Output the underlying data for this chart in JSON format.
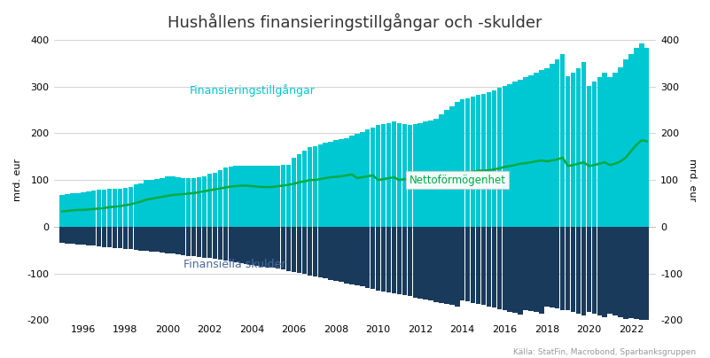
{
  "title": "Hushållens finansieringstillgångar och -skulder",
  "ylabel_left": "mrd. eur",
  "ylabel_right": "mrd. eur",
  "source": "Källa: StatFin, Macrobond, Sparbanksgruppen",
  "ylim": [
    -200,
    400
  ],
  "yticks": [
    -200,
    -100,
    0,
    100,
    200,
    300,
    400
  ],
  "background_color": "#ffffff",
  "bar_color_assets": "#00c8d2",
  "bar_color_liabilities": "#1a3a5c",
  "line_color": "#00aa44",
  "label_assets": "Finansieringstillgångar",
  "label_liabilities": "Finansiella skulder",
  "label_net": "Nettoförmögenhet",
  "start_year": 1995,
  "n_quarters": 112,
  "assets_quarterly": [
    68,
    70,
    71,
    72,
    73,
    75,
    77,
    79,
    80,
    81,
    82,
    82,
    84,
    86,
    90,
    93,
    100,
    101,
    102,
    104,
    107,
    107,
    106,
    105,
    104,
    105,
    106,
    107,
    113,
    116,
    121,
    126,
    128,
    130,
    130,
    130,
    130,
    130,
    130,
    130,
    130,
    131,
    132,
    133,
    148,
    155,
    162,
    170,
    173,
    176,
    179,
    182,
    185,
    188,
    190,
    195,
    198,
    203,
    208,
    213,
    218,
    220,
    222,
    225,
    222,
    220,
    218,
    220,
    222,
    225,
    228,
    232,
    240,
    250,
    258,
    268,
    272,
    275,
    278,
    282,
    285,
    288,
    292,
    298,
    302,
    306,
    310,
    315,
    320,
    325,
    330,
    335,
    340,
    348,
    358,
    370,
    322,
    330,
    340,
    352,
    302,
    310,
    320,
    330,
    320,
    330,
    342,
    358,
    370,
    382,
    392,
    382
  ],
  "liabilities_quarterly": [
    -35,
    -36,
    -37,
    -38,
    -39,
    -40,
    -41,
    -42,
    -43,
    -44,
    -45,
    -46,
    -47,
    -48,
    -50,
    -51,
    -52,
    -53,
    -54,
    -56,
    -57,
    -58,
    -59,
    -61,
    -62,
    -63,
    -64,
    -66,
    -67,
    -68,
    -70,
    -72,
    -74,
    -76,
    -78,
    -80,
    -82,
    -83,
    -85,
    -87,
    -88,
    -90,
    -92,
    -95,
    -97,
    -99,
    -101,
    -104,
    -106,
    -108,
    -111,
    -114,
    -116,
    -118,
    -121,
    -124,
    -126,
    -128,
    -131,
    -133,
    -136,
    -138,
    -140,
    -143,
    -145,
    -147,
    -149,
    -152,
    -154,
    -156,
    -158,
    -161,
    -163,
    -165,
    -168,
    -170,
    -158,
    -160,
    -163,
    -166,
    -168,
    -170,
    -173,
    -176,
    -179,
    -182,
    -185,
    -188,
    -178,
    -180,
    -183,
    -186,
    -170,
    -172,
    -175,
    -178,
    -178,
    -182,
    -186,
    -190,
    -183,
    -186,
    -190,
    -194,
    -186,
    -190,
    -194,
    -198,
    -195,
    -197,
    -199,
    -200
  ],
  "net_quarterly": [
    33,
    34,
    35,
    36,
    36,
    37,
    38,
    39,
    40,
    42,
    43,
    44,
    46,
    48,
    51,
    54,
    58,
    60,
    62,
    64,
    66,
    68,
    69,
    70,
    71,
    72,
    74,
    76,
    78,
    80,
    82,
    84,
    86,
    87,
    88,
    88,
    87,
    86,
    85,
    85,
    85,
    87,
    88,
    90,
    92,
    95,
    97,
    100,
    100,
    102,
    104,
    106,
    107,
    108,
    110,
    112,
    104,
    106,
    108,
    110,
    100,
    102,
    104,
    106,
    100,
    102,
    100,
    98,
    100,
    102,
    104,
    106,
    108,
    110,
    112,
    114,
    115,
    116,
    118,
    120,
    120,
    121,
    123,
    125,
    128,
    130,
    132,
    135,
    136,
    138,
    140,
    142,
    140,
    142,
    144,
    148,
    130,
    132,
    135,
    138,
    130,
    132,
    135,
    138,
    132,
    135,
    140,
    148,
    162,
    175,
    185,
    183
  ]
}
